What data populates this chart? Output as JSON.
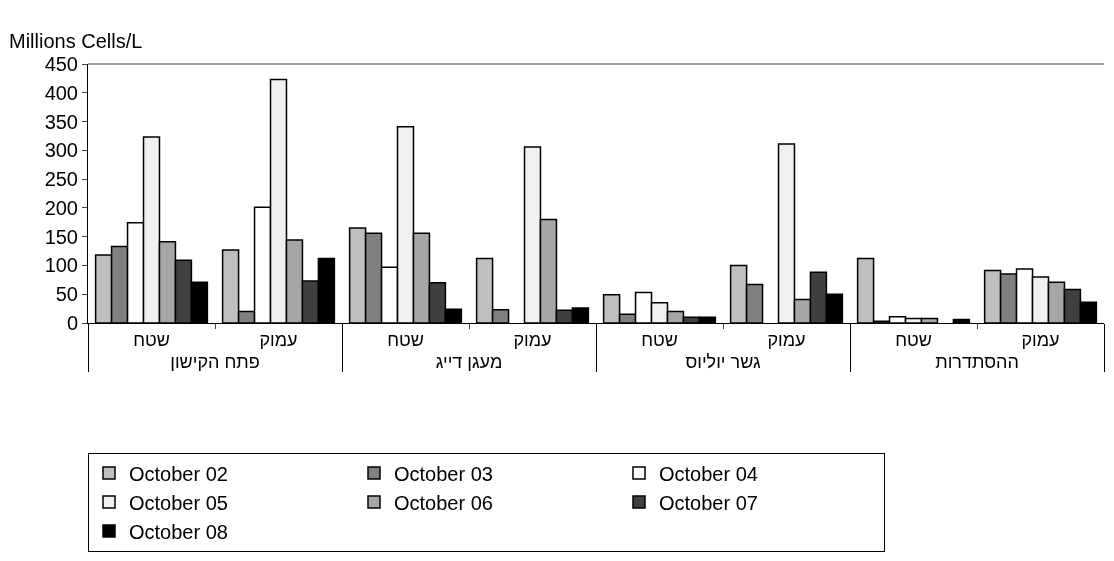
{
  "chart_data": {
    "type": "bar",
    "ylabel": "Millions Cells/L",
    "categories": [
      "שטח",
      "עמוק",
      "שטח",
      "עמוק",
      "שטח",
      "עמוק",
      "שטח",
      "עמוק"
    ],
    "annotations": [
      "פתח הקישון",
      "מעגן דייג",
      "גשר יוליוס",
      "ההסתדרות"
    ],
    "series": [
      {
        "name": "October 02",
        "color": "#bfbfbf",
        "values": [
          118,
          127,
          165,
          112,
          49,
          100,
          112,
          91
        ]
      },
      {
        "name": "October 03",
        "color": "#808080",
        "values": [
          133,
          20,
          156,
          23,
          15,
          67,
          3,
          85
        ]
      },
      {
        "name": "October 04",
        "color": "#ffffff",
        "values": [
          174,
          201,
          97,
          null,
          53,
          null,
          11,
          94
        ]
      },
      {
        "name": "October 05",
        "color": "#f0f0f0",
        "values": [
          323,
          423,
          341,
          306,
          35,
          311,
          8,
          80
        ]
      },
      {
        "name": "October 06",
        "color": "#a6a6a6",
        "values": [
          141,
          144,
          156,
          180,
          20,
          41,
          8,
          71
        ]
      },
      {
        "name": "October 07",
        "color": "#404040",
        "values": [
          109,
          73,
          70,
          22,
          10,
          88,
          null,
          58
        ]
      },
      {
        "name": "October 08",
        "color": "#000000",
        "values": [
          71,
          112,
          24,
          26,
          10,
          50,
          6,
          36
        ]
      }
    ],
    "ylim": [
      0,
      450
    ],
    "yticks": [
      0,
      50,
      100,
      150,
      200,
      250,
      300,
      350,
      400,
      450
    ],
    "grid": false,
    "legend": "bottom"
  }
}
